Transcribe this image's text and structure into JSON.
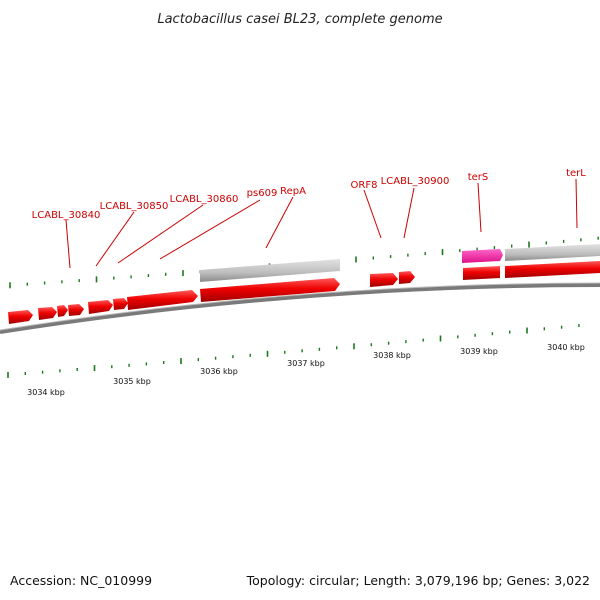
{
  "title": "Lactobacillus casei BL23, complete genome",
  "footer": {
    "accession": "Accession: NC_010999",
    "summary": "Topology: circular; Length: 3,079,196 bp; Genes: 3,022"
  },
  "colors": {
    "gene": "#ee0000",
    "gene_edge": "#990000",
    "highlight_gene": "#ff33aa",
    "feature_bar": "#c4c4c4",
    "backbone": "#7a7a7a",
    "tick": "#1a7a1a",
    "label": "#cc0000"
  },
  "gene_labels": [
    "LCABL_30840",
    "LCABL_30850",
    "LCABL_30860",
    "ps609",
    "RepA",
    "ORF8",
    "LCABL_30900",
    "terS",
    "terL"
  ],
  "kbp_labels": [
    "3034 kbp",
    "3035 kbp",
    "3036 kbp",
    "3037 kbp",
    "3038 kbp",
    "3039 kbp",
    "3040 kbp"
  ]
}
